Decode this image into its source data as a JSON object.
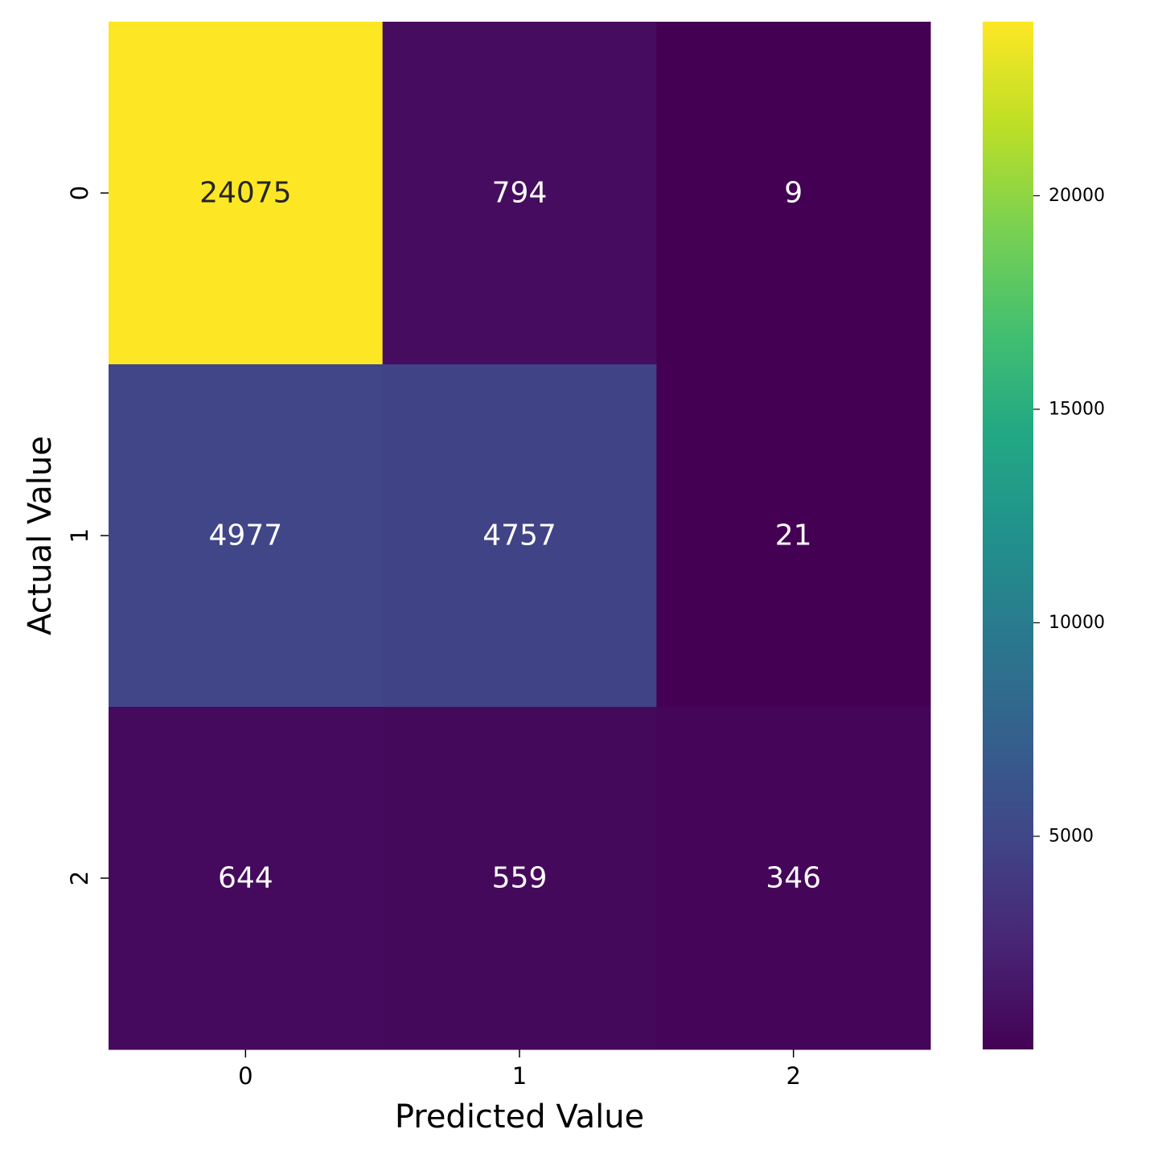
{
  "chart_data": {
    "type": "heatmap",
    "x_categories": [
      "0",
      "1",
      "2"
    ],
    "y_categories": [
      "0",
      "1",
      "2"
    ],
    "matrix": [
      [
        24075,
        794,
        9
      ],
      [
        4977,
        4757,
        21
      ],
      [
        644,
        559,
        346
      ]
    ],
    "xlabel": "Predicted Value",
    "ylabel": "Actual Value",
    "colormap": "viridis",
    "vmin": 9,
    "vmax": 24075,
    "colorbar_ticks": [
      5000,
      10000,
      15000,
      20000
    ],
    "annotation_colors": {
      "light": "#ffffff",
      "dark": "#262626"
    }
  }
}
